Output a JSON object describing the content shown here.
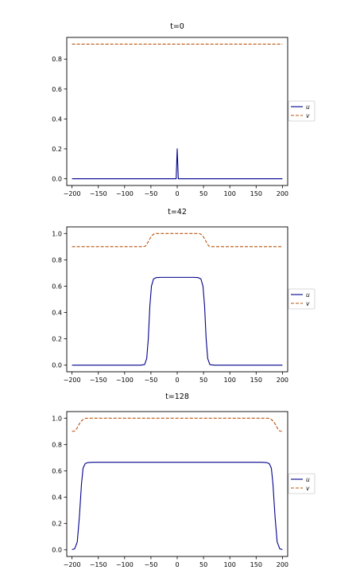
{
  "colors": {
    "u": "#00008b",
    "v": "#b8540f"
  },
  "chart_data": [
    {
      "type": "line",
      "title": "t=0",
      "xlim": [
        -210,
        210
      ],
      "ylim": [
        -0.045,
        0.945
      ],
      "xticks": [
        -200,
        -150,
        -100,
        -50,
        0,
        50,
        100,
        150,
        200
      ],
      "xtick_labels": [
        "−200",
        "−150",
        "−100",
        "−50",
        "0",
        "50",
        "100",
        "150",
        "200"
      ],
      "yticks": [
        0.0,
        0.2,
        0.4,
        0.6,
        0.8
      ],
      "ytick_labels": [
        "0.0",
        "0.2",
        "0.4",
        "0.6",
        "0.8"
      ],
      "legend": {
        "placement": "right, outside plot",
        "entries": [
          "u",
          "v"
        ]
      },
      "series": [
        {
          "name": "u",
          "style": "solid",
          "x": [
            -200,
            -2,
            -1,
            0,
            1,
            2,
            200
          ],
          "y": [
            0,
            0,
            0.1,
            0.2,
            0.1,
            0,
            0
          ]
        },
        {
          "name": "v",
          "style": "dashed",
          "x": [
            -200,
            200
          ],
          "y": [
            0.9,
            0.9
          ]
        }
      ]
    },
    {
      "type": "line",
      "title": "t=42",
      "xlim": [
        -210,
        210
      ],
      "ylim": [
        -0.05,
        1.05
      ],
      "xticks": [
        -200,
        -150,
        -100,
        -50,
        0,
        50,
        100,
        150,
        200
      ],
      "xtick_labels": [
        "−200",
        "−150",
        "−100",
        "−50",
        "0",
        "50",
        "100",
        "150",
        "200"
      ],
      "yticks": [
        0.0,
        0.2,
        0.4,
        0.6,
        0.8,
        1.0
      ],
      "ytick_labels": [
        "0.0",
        "0.2",
        "0.4",
        "0.6",
        "0.8",
        "1.0"
      ],
      "legend": {
        "placement": "right, outside plot",
        "entries": [
          "u",
          "v"
        ]
      },
      "series": [
        {
          "name": "u",
          "style": "solid",
          "x": [
            -200,
            -70,
            -62,
            -58,
            -55,
            -52,
            -49,
            -45,
            -40,
            -30,
            0,
            30,
            40,
            45,
            49,
            52,
            55,
            58,
            62,
            70,
            200
          ],
          "y": [
            0,
            0,
            0.005,
            0.05,
            0.2,
            0.45,
            0.6,
            0.655,
            0.665,
            0.667,
            0.667,
            0.667,
            0.665,
            0.655,
            0.6,
            0.45,
            0.2,
            0.05,
            0.005,
            0,
            0
          ]
        },
        {
          "name": "v",
          "style": "dashed",
          "x": [
            -200,
            -65,
            -60,
            -56,
            -52,
            -48,
            -44,
            -40,
            0,
            40,
            44,
            48,
            52,
            56,
            60,
            65,
            200
          ],
          "y": [
            0.9,
            0.9,
            0.905,
            0.93,
            0.96,
            0.985,
            0.997,
            1.0,
            1.0,
            1.0,
            0.997,
            0.985,
            0.96,
            0.93,
            0.905,
            0.9,
            0.9
          ]
        }
      ]
    },
    {
      "type": "line",
      "title": "t=128",
      "xlim": [
        -210,
        210
      ],
      "ylim": [
        -0.05,
        1.05
      ],
      "xticks": [
        -200,
        -150,
        -100,
        -50,
        0,
        50,
        100,
        150,
        200
      ],
      "xtick_labels": [
        "−200",
        "−150",
        "−100",
        "−50",
        "0",
        "50",
        "100",
        "150",
        "200"
      ],
      "yticks": [
        0.0,
        0.2,
        0.4,
        0.6,
        0.8,
        1.0
      ],
      "ytick_labels": [
        "0.0",
        "0.2",
        "0.4",
        "0.6",
        "0.8",
        "1.0"
      ],
      "legend": {
        "placement": "right, outside plot",
        "entries": [
          "u",
          "v"
        ]
      },
      "series": [
        {
          "name": "u",
          "style": "solid",
          "x": [
            -200,
            -195,
            -190,
            -186,
            -182,
            -179,
            -175,
            -170,
            -160,
            0,
            160,
            170,
            175,
            179,
            182,
            186,
            190,
            195,
            200
          ],
          "y": [
            0.002,
            0.008,
            0.06,
            0.25,
            0.5,
            0.62,
            0.655,
            0.663,
            0.665,
            0.665,
            0.665,
            0.663,
            0.655,
            0.62,
            0.5,
            0.25,
            0.06,
            0.008,
            0.002
          ]
        },
        {
          "name": "v",
          "style": "dashed",
          "x": [
            -200,
            -195,
            -191,
            -187,
            -183,
            -179,
            -175,
            -170,
            0,
            170,
            175,
            179,
            183,
            187,
            191,
            195,
            200
          ],
          "y": [
            0.9,
            0.902,
            0.92,
            0.95,
            0.975,
            0.99,
            0.998,
            1.0,
            1.0,
            1.0,
            0.998,
            0.99,
            0.975,
            0.95,
            0.92,
            0.902,
            0.9
          ]
        }
      ]
    }
  ]
}
